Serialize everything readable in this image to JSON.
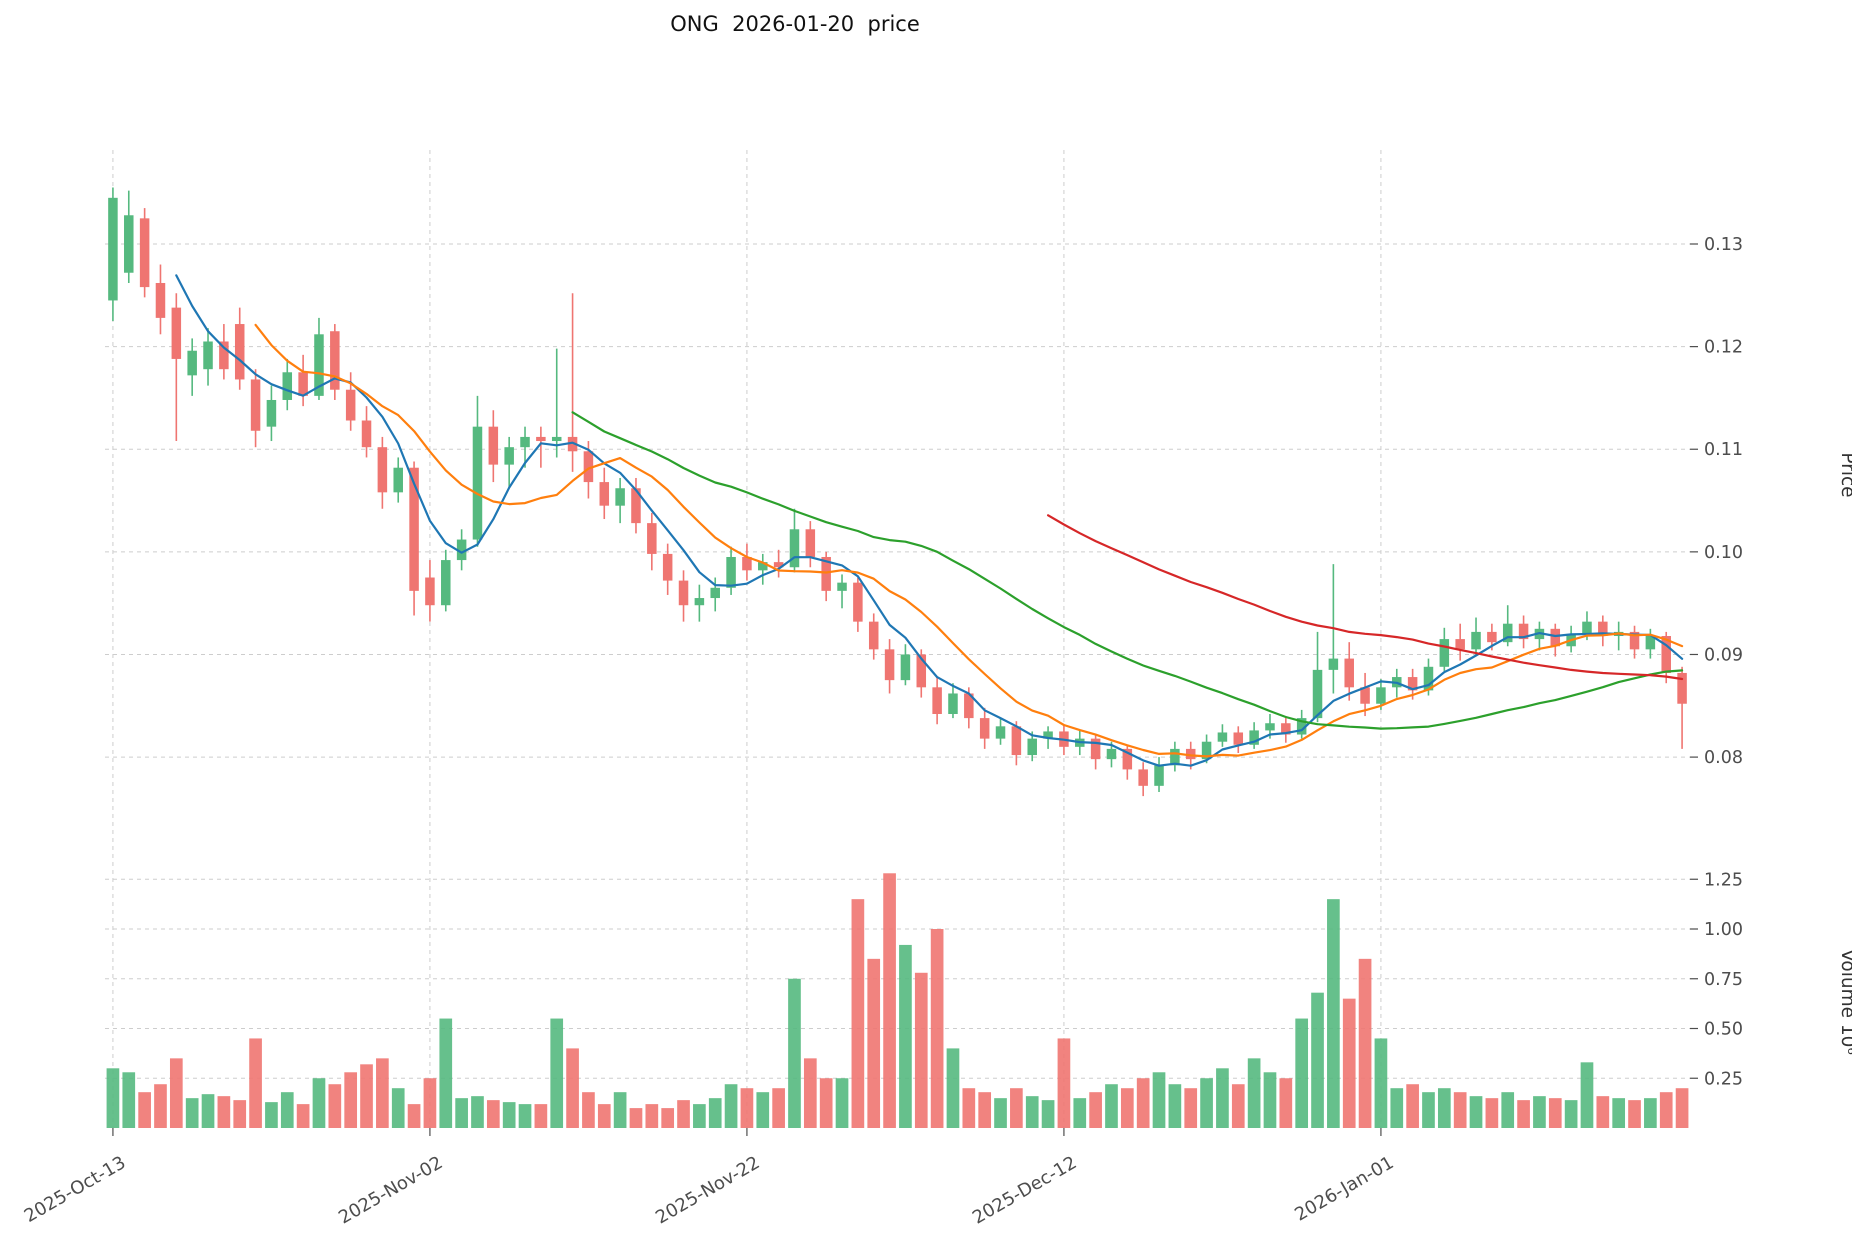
{
  "title": "ONG  2026-01-20  price",
  "axes": {
    "price_axis_label": "Price",
    "volume_axis_label": "Volume 10⁶",
    "price_ticks": [
      "0.13",
      "0.12",
      "0.11",
      "0.10",
      "0.09",
      "0.08"
    ],
    "volume_ticks": [
      "0.25",
      "0.50",
      "0.75",
      "1.00",
      "1.25"
    ],
    "x_ticks": [
      {
        "index": 0,
        "label": "2025-Oct-13"
      },
      {
        "index": 20,
        "label": "2025-Nov-02"
      },
      {
        "index": 40,
        "label": "2025-Nov-22"
      },
      {
        "index": 60,
        "label": "2025-Dec-12"
      },
      {
        "index": 80,
        "label": "2026-Jan-01"
      }
    ]
  },
  "chart_data": {
    "type": "candlestick",
    "title": "ONG  2026-01-20  price",
    "ylabel_price": "Price",
    "ylabel_volume": "Volume 10⁶",
    "grid": "dashed",
    "legend": "none",
    "price_ylim": [
      0.074,
      0.139
    ],
    "volume_ylim_millions": [
      0,
      1.45
    ],
    "num_candles": 100,
    "x_tick_indices": [
      0,
      20,
      40,
      60,
      80
    ],
    "x_tick_labels": [
      "2025-Oct-13",
      "2025-Nov-02",
      "2025-Nov-22",
      "2025-Dec-12",
      "2026-Jan-01"
    ],
    "ohlc": [
      [
        0.1245,
        0.1355,
        0.1225,
        0.1345
      ],
      [
        0.1272,
        0.1352,
        0.1262,
        0.1328
      ],
      [
        0.1325,
        0.1335,
        0.1248,
        0.1258
      ],
      [
        0.1262,
        0.128,
        0.1212,
        0.1228
      ],
      [
        0.1238,
        0.1252,
        0.1108,
        0.1188
      ],
      [
        0.1172,
        0.1208,
        0.1152,
        0.1196
      ],
      [
        0.1178,
        0.1218,
        0.1162,
        0.1205
      ],
      [
        0.1205,
        0.1222,
        0.1168,
        0.1178
      ],
      [
        0.1222,
        0.1238,
        0.1158,
        0.1168
      ],
      [
        0.1168,
        0.1178,
        0.1102,
        0.1118
      ],
      [
        0.1122,
        0.1162,
        0.1108,
        0.1148
      ],
      [
        0.1148,
        0.1188,
        0.1138,
        0.1175
      ],
      [
        0.1175,
        0.1192,
        0.1142,
        0.1152
      ],
      [
        0.1152,
        0.1228,
        0.1148,
        0.1212
      ],
      [
        0.1215,
        0.1222,
        0.1148,
        0.1158
      ],
      [
        0.1158,
        0.1175,
        0.1118,
        0.1128
      ],
      [
        0.1128,
        0.1142,
        0.1092,
        0.1102
      ],
      [
        0.1102,
        0.1112,
        0.1042,
        0.1058
      ],
      [
        0.1058,
        0.1092,
        0.1048,
        0.1082
      ],
      [
        0.1082,
        0.1088,
        0.0938,
        0.0962
      ],
      [
        0.0975,
        0.0992,
        0.0932,
        0.0948
      ],
      [
        0.0948,
        0.1002,
        0.0942,
        0.0992
      ],
      [
        0.0992,
        0.1022,
        0.0982,
        0.1012
      ],
      [
        0.1012,
        0.1152,
        0.1005,
        0.1122
      ],
      [
        0.1122,
        0.1138,
        0.1068,
        0.1085
      ],
      [
        0.1085,
        0.1112,
        0.1062,
        0.1102
      ],
      [
        0.1102,
        0.1122,
        0.1082,
        0.1112
      ],
      [
        0.1112,
        0.1122,
        0.1082,
        0.1108
      ],
      [
        0.1108,
        0.1198,
        0.1092,
        0.1112
      ],
      [
        0.1112,
        0.1252,
        0.1078,
        0.1098
      ],
      [
        0.1098,
        0.1108,
        0.1052,
        0.1068
      ],
      [
        0.1068,
        0.1082,
        0.1032,
        0.1045
      ],
      [
        0.1045,
        0.1072,
        0.1028,
        0.1062
      ],
      [
        0.1062,
        0.1072,
        0.1018,
        0.1028
      ],
      [
        0.1028,
        0.1038,
        0.0982,
        0.0998
      ],
      [
        0.0998,
        0.1008,
        0.0958,
        0.0972
      ],
      [
        0.0972,
        0.0982,
        0.0932,
        0.0948
      ],
      [
        0.0948,
        0.0968,
        0.0932,
        0.0955
      ],
      [
        0.0955,
        0.0975,
        0.0942,
        0.0965
      ],
      [
        0.0965,
        0.1005,
        0.0958,
        0.0995
      ],
      [
        0.0995,
        0.1008,
        0.0972,
        0.0982
      ],
      [
        0.0982,
        0.0998,
        0.0968,
        0.099
      ],
      [
        0.099,
        0.1002,
        0.0975,
        0.0985
      ],
      [
        0.0985,
        0.1042,
        0.098,
        0.1022
      ],
      [
        0.1022,
        0.103,
        0.0985,
        0.0995
      ],
      [
        0.0995,
        0.1,
        0.0952,
        0.0962
      ],
      [
        0.0962,
        0.0978,
        0.0945,
        0.097
      ],
      [
        0.097,
        0.0975,
        0.0922,
        0.0932
      ],
      [
        0.0932,
        0.094,
        0.0895,
        0.0905
      ],
      [
        0.0905,
        0.0915,
        0.0862,
        0.0875
      ],
      [
        0.0875,
        0.091,
        0.087,
        0.09
      ],
      [
        0.09,
        0.0905,
        0.0858,
        0.0868
      ],
      [
        0.0868,
        0.0878,
        0.0832,
        0.0842
      ],
      [
        0.0842,
        0.0872,
        0.0838,
        0.0862
      ],
      [
        0.0862,
        0.0868,
        0.0828,
        0.0838
      ],
      [
        0.0838,
        0.0848,
        0.0808,
        0.0818
      ],
      [
        0.0818,
        0.0838,
        0.0812,
        0.083
      ],
      [
        0.083,
        0.0835,
        0.0792,
        0.0802
      ],
      [
        0.0802,
        0.0825,
        0.0796,
        0.0818
      ],
      [
        0.0818,
        0.083,
        0.0808,
        0.0825
      ],
      [
        0.0825,
        0.0832,
        0.0802,
        0.081
      ],
      [
        0.081,
        0.0826,
        0.0802,
        0.0818
      ],
      [
        0.0818,
        0.0822,
        0.0788,
        0.0798
      ],
      [
        0.0798,
        0.0815,
        0.079,
        0.0808
      ],
      [
        0.0808,
        0.0812,
        0.0778,
        0.0788
      ],
      [
        0.0788,
        0.0795,
        0.0762,
        0.0772
      ],
      [
        0.0772,
        0.08,
        0.0766,
        0.0792
      ],
      [
        0.0792,
        0.0815,
        0.0786,
        0.0808
      ],
      [
        0.0808,
        0.0815,
        0.0788,
        0.0798
      ],
      [
        0.0798,
        0.0822,
        0.0794,
        0.0815
      ],
      [
        0.0815,
        0.0832,
        0.081,
        0.0824
      ],
      [
        0.0824,
        0.083,
        0.0804,
        0.0812
      ],
      [
        0.0812,
        0.0834,
        0.0808,
        0.0826
      ],
      [
        0.0826,
        0.0842,
        0.0818,
        0.0833
      ],
      [
        0.0833,
        0.084,
        0.0814,
        0.0822
      ],
      [
        0.0822,
        0.0846,
        0.0818,
        0.0838
      ],
      [
        0.0838,
        0.0922,
        0.0834,
        0.0885
      ],
      [
        0.0885,
        0.0988,
        0.0862,
        0.0896
      ],
      [
        0.0896,
        0.0912,
        0.0855,
        0.0868
      ],
      [
        0.0868,
        0.0882,
        0.084,
        0.0852
      ],
      [
        0.0852,
        0.0876,
        0.0846,
        0.0868
      ],
      [
        0.0868,
        0.0886,
        0.0858,
        0.0878
      ],
      [
        0.0878,
        0.0886,
        0.0856,
        0.0865
      ],
      [
        0.0865,
        0.0896,
        0.086,
        0.0888
      ],
      [
        0.0888,
        0.0926,
        0.0884,
        0.0915
      ],
      [
        0.0915,
        0.093,
        0.0894,
        0.0905
      ],
      [
        0.0905,
        0.0936,
        0.09,
        0.0922
      ],
      [
        0.0922,
        0.093,
        0.0904,
        0.0912
      ],
      [
        0.0912,
        0.0948,
        0.0908,
        0.093
      ],
      [
        0.093,
        0.0938,
        0.0906,
        0.0915
      ],
      [
        0.0915,
        0.0932,
        0.0904,
        0.0925
      ],
      [
        0.0925,
        0.093,
        0.0898,
        0.0908
      ],
      [
        0.0908,
        0.0928,
        0.0902,
        0.092
      ],
      [
        0.092,
        0.0942,
        0.0914,
        0.0932
      ],
      [
        0.0932,
        0.0938,
        0.0908,
        0.0918
      ],
      [
        0.0918,
        0.0932,
        0.0904,
        0.0922
      ],
      [
        0.0922,
        0.0928,
        0.0896,
        0.0905
      ],
      [
        0.0905,
        0.0925,
        0.0896,
        0.0918
      ],
      [
        0.0918,
        0.0922,
        0.0872,
        0.0882
      ],
      [
        0.0882,
        0.0888,
        0.0808,
        0.0852
      ]
    ],
    "volume_millions": [
      0.3,
      0.28,
      0.18,
      0.22,
      0.35,
      0.15,
      0.17,
      0.16,
      0.14,
      0.45,
      0.13,
      0.18,
      0.12,
      0.25,
      0.22,
      0.28,
      0.32,
      0.35,
      0.2,
      0.12,
      0.25,
      0.55,
      0.15,
      0.16,
      0.14,
      0.13,
      0.12,
      0.12,
      0.55,
      0.4,
      0.18,
      0.12,
      0.18,
      0.1,
      0.12,
      0.1,
      0.14,
      0.12,
      0.15,
      0.22,
      0.2,
      0.18,
      0.2,
      0.75,
      0.35,
      0.25,
      0.25,
      1.15,
      0.85,
      1.28,
      0.92,
      0.78,
      1.0,
      0.4,
      0.2,
      0.18,
      0.15,
      0.2,
      0.16,
      0.14,
      0.45,
      0.15,
      0.18,
      0.22,
      0.2,
      0.25,
      0.28,
      0.22,
      0.2,
      0.25,
      0.3,
      0.22,
      0.35,
      0.28,
      0.25,
      0.55,
      0.68,
      1.15,
      0.65,
      0.85,
      0.45,
      0.2,
      0.22,
      0.18,
      0.2,
      0.18,
      0.16,
      0.15,
      0.18,
      0.14,
      0.16,
      0.15,
      0.14,
      0.33,
      0.16,
      0.15,
      0.14,
      0.15,
      0.18,
      0.2
    ],
    "overlays": [
      {
        "name": "SMA5",
        "window": 5,
        "color": "#1f77b4"
      },
      {
        "name": "SMA10",
        "window": 10,
        "color": "#ff7f0e"
      },
      {
        "name": "SMA30",
        "window": 30,
        "color": "#2ca02c"
      },
      {
        "name": "SMA60",
        "window": 60,
        "color": "#d62728"
      }
    ],
    "colors": {
      "up": "#55b97f",
      "down": "#ef7571",
      "grid": "#cdcdcd",
      "tick_text": "#4d4d4d",
      "axis_label_text": "#333333",
      "title_text": "#111111"
    }
  }
}
